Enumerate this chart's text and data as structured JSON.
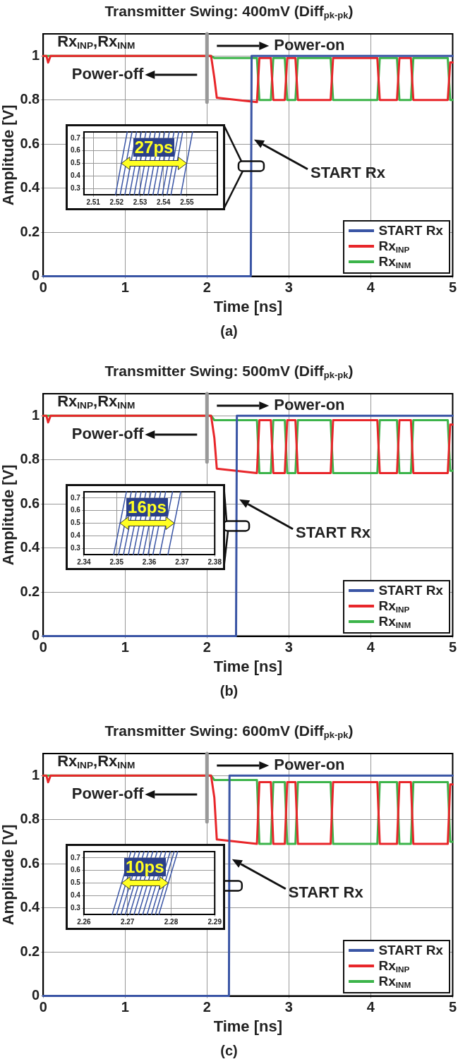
{
  "chart_data": [
    {
      "type": "line",
      "title": "Transmitter Swing: 400mV (Diff$_{pk-pk}$)",
      "xlabel": "Time [ns]",
      "ylabel": "Amplitude [V]",
      "xlim": [
        0,
        5
      ],
      "xticks": [
        0,
        1,
        2,
        3,
        4,
        5
      ],
      "ylim": [
        0,
        1.1
      ],
      "yticks": [
        0,
        0.2,
        0.4,
        0.6,
        0.8,
        1
      ],
      "grid": true,
      "legend": "bottom right",
      "marker": "none",
      "annotations": [
        "Rx$_{INP}$,Rx$_{INM}$",
        "Power-on",
        "Power-off",
        "START Rx",
        "(a)"
      ],
      "series": [
        {
          "color": "#999999",
          "x": [
            2,
            2
          ],
          "values": [
            0.79,
            1.1
          ]
        },
        {
          "name": "START Rx",
          "color": "#3a55a5",
          "x": [
            0,
            2.535,
            2.545,
            5
          ],
          "values": [
            0,
            0,
            1,
            1
          ]
        },
        {
          "name": "Rx$_{INP}$",
          "color": "#e8262a",
          "x": [
            0,
            0.04,
            0.06,
            0.09,
            2.05,
            2.09,
            2.12,
            2.61,
            2.64,
            2.78,
            2.81,
            2.95,
            2.98,
            3.08,
            3.11,
            3.51,
            3.54,
            4.08,
            4.11,
            4.32,
            4.35,
            4.49,
            4.52,
            4.94,
            4.97,
            5
          ],
          "values": [
            1,
            1,
            0.97,
            1,
            1,
            0.9,
            0.81,
            0.79,
            0.99,
            0.99,
            0.8,
            0.8,
            0.99,
            0.99,
            0.8,
            0.8,
            0.99,
            0.99,
            0.8,
            0.8,
            0.99,
            0.99,
            0.8,
            0.8,
            0.97,
            0.97
          ]
        },
        {
          "name": "Rx$_{INM}$",
          "color": "#3cb44a",
          "x": [
            0,
            2.05,
            2.09,
            2.61,
            2.64,
            2.78,
            2.81,
            2.95,
            2.98,
            3.08,
            3.11,
            3.51,
            3.54,
            4.08,
            4.11,
            4.32,
            4.35,
            4.49,
            4.52,
            4.94,
            4.97,
            5
          ],
          "values": [
            1,
            1,
            0.99,
            0.99,
            0.8,
            0.8,
            0.99,
            0.99,
            0.8,
            0.8,
            0.99,
            0.99,
            0.8,
            0.8,
            0.99,
            0.99,
            0.8,
            0.8,
            0.99,
            0.99,
            0.8,
            0.8
          ]
        }
      ]
    },
    {
      "type": "line",
      "xlim": [
        2.506,
        2.563
      ],
      "xticks": [
        2.51,
        2.52,
        2.53,
        2.54,
        2.55
      ],
      "ylim": [
        0.25,
        0.75
      ],
      "yticks": [
        0.3,
        0.4,
        0.5,
        0.6,
        0.7
      ],
      "grid": true,
      "marker": "none",
      "annotations": [
        "27ps"
      ],
      "series": [
        {
          "color": "#3a55a5",
          "x": [
            2.5195,
            2.5245
          ],
          "values": [
            0.25,
            0.75
          ]
        },
        {
          "color": "#3a55a5",
          "x": [
            2.5215,
            2.5265
          ],
          "values": [
            0.25,
            0.75
          ]
        },
        {
          "color": "#3a55a5",
          "x": [
            2.5235,
            2.5285
          ],
          "values": [
            0.25,
            0.75
          ]
        },
        {
          "color": "#3a55a5",
          "x": [
            2.5255,
            2.5305
          ],
          "values": [
            0.25,
            0.75
          ]
        },
        {
          "color": "#3a55a5",
          "x": [
            2.5275,
            2.5325
          ],
          "values": [
            0.25,
            0.75
          ]
        },
        {
          "color": "#3a55a5",
          "x": [
            2.5295,
            2.5345
          ],
          "values": [
            0.25,
            0.75
          ]
        },
        {
          "color": "#3a55a5",
          "x": [
            2.5315,
            2.5365
          ],
          "values": [
            0.25,
            0.75
          ]
        },
        {
          "color": "#3a55a5",
          "x": [
            2.5335,
            2.5385
          ],
          "values": [
            0.25,
            0.75
          ]
        },
        {
          "color": "#3a55a5",
          "x": [
            2.5355,
            2.5405
          ],
          "values": [
            0.25,
            0.75
          ]
        },
        {
          "color": "#3a55a5",
          "x": [
            2.5375,
            2.5425
          ],
          "values": [
            0.25,
            0.75
          ]
        },
        {
          "color": "#3a55a5",
          "x": [
            2.5395,
            2.5445
          ],
          "values": [
            0.25,
            0.75
          ]
        },
        {
          "color": "#3a55a5",
          "x": [
            2.5415,
            2.5465
          ],
          "values": [
            0.25,
            0.75
          ]
        },
        {
          "color": "#3a55a5",
          "x": [
            2.5432,
            2.5482
          ],
          "values": [
            0.25,
            0.75
          ]
        },
        {
          "color": "#3a55a5",
          "x": [
            2.5474,
            2.5524
          ],
          "values": [
            0.25,
            0.75
          ]
        }
      ]
    },
    {
      "type": "line",
      "title": "Transmitter Swing: 500mV (Diff$_{pk-pk}$)",
      "xlabel": "Time [ns]",
      "ylabel": "Amplitude [V]",
      "xlim": [
        0,
        5
      ],
      "xticks": [
        0,
        1,
        2,
        3,
        4,
        5
      ],
      "ylim": [
        0,
        1.1
      ],
      "yticks": [
        0,
        0.2,
        0.4,
        0.6,
        0.8,
        1
      ],
      "grid": true,
      "legend": "bottom right",
      "marker": "none",
      "annotations": [
        "Rx$_{INP}$,Rx$_{INM}$",
        "Power-on",
        "Power-off",
        "START Rx",
        "(b)"
      ],
      "series": [
        {
          "color": "#999999",
          "x": [
            2,
            2
          ],
          "values": [
            0.79,
            1.1
          ]
        },
        {
          "name": "START Rx",
          "color": "#3a55a5",
          "x": [
            0,
            2.355,
            2.365,
            5
          ],
          "values": [
            0,
            0,
            1,
            1
          ]
        },
        {
          "name": "Rx$_{INP}$",
          "color": "#e8262a",
          "x": [
            0,
            0.04,
            0.06,
            0.09,
            2.05,
            2.09,
            2.12,
            2.61,
            2.64,
            2.78,
            2.81,
            2.95,
            2.98,
            3.08,
            3.11,
            3.51,
            3.54,
            4.08,
            4.11,
            4.32,
            4.35,
            4.49,
            4.52,
            4.94,
            4.97,
            5
          ],
          "values": [
            1,
            1,
            0.97,
            1,
            1,
            0.9,
            0.76,
            0.74,
            0.98,
            0.98,
            0.74,
            0.74,
            0.98,
            0.98,
            0.74,
            0.74,
            0.98,
            0.98,
            0.74,
            0.74,
            0.98,
            0.98,
            0.74,
            0.74,
            0.96,
            0.96
          ]
        },
        {
          "name": "Rx$_{INM}$",
          "color": "#3cb44a",
          "x": [
            0,
            2.05,
            2.09,
            2.61,
            2.64,
            2.78,
            2.81,
            2.95,
            2.98,
            3.08,
            3.11,
            3.51,
            3.54,
            4.08,
            4.11,
            4.32,
            4.35,
            4.49,
            4.52,
            4.94,
            4.97,
            5
          ],
          "values": [
            1,
            1,
            0.98,
            0.98,
            0.74,
            0.74,
            0.98,
            0.98,
            0.74,
            0.74,
            0.98,
            0.98,
            0.74,
            0.74,
            0.98,
            0.98,
            0.74,
            0.74,
            0.98,
            0.98,
            0.75,
            0.75
          ]
        }
      ]
    },
    {
      "type": "line",
      "xlim": [
        2.34,
        2.38
      ],
      "xticks": [
        2.34,
        2.35,
        2.36,
        2.37,
        2.38
      ],
      "ylim": [
        0.25,
        0.75
      ],
      "yticks": [
        0.3,
        0.4,
        0.5,
        0.6,
        0.7
      ],
      "grid": true,
      "marker": "none",
      "annotations": [
        "16ps"
      ],
      "series": [
        {
          "color": "#3a55a5",
          "x": [
            2.3491,
            2.353
          ],
          "values": [
            0.25,
            0.75
          ]
        },
        {
          "color": "#3a55a5",
          "x": [
            2.3506,
            2.3545
          ],
          "values": [
            0.25,
            0.75
          ]
        },
        {
          "color": "#3a55a5",
          "x": [
            2.3521,
            2.356
          ],
          "values": [
            0.25,
            0.75
          ]
        },
        {
          "color": "#3a55a5",
          "x": [
            2.3536,
            2.3575
          ],
          "values": [
            0.25,
            0.75
          ]
        },
        {
          "color": "#3a55a5",
          "x": [
            2.3551,
            2.359
          ],
          "values": [
            0.25,
            0.75
          ]
        },
        {
          "color": "#3a55a5",
          "x": [
            2.3566,
            2.3605
          ],
          "values": [
            0.25,
            0.75
          ]
        },
        {
          "color": "#3a55a5",
          "x": [
            2.3581,
            2.362
          ],
          "values": [
            0.25,
            0.75
          ]
        },
        {
          "color": "#3a55a5",
          "x": [
            2.3596,
            2.3635
          ],
          "values": [
            0.25,
            0.75
          ]
        },
        {
          "color": "#3a55a5",
          "x": [
            2.3611,
            2.365
          ],
          "values": [
            0.25,
            0.75
          ]
        },
        {
          "color": "#3a55a5",
          "x": [
            2.3632,
            2.3671
          ],
          "values": [
            0.25,
            0.75
          ]
        },
        {
          "color": "#3a55a5",
          "x": [
            2.3657,
            2.3696
          ],
          "values": [
            0.25,
            0.75
          ]
        }
      ]
    },
    {
      "type": "line",
      "title": "Transmitter Swing: 600mV (Diff$_{pk-pk}$)",
      "xlabel": "Time [ns]",
      "ylabel": "Amplitude [V]",
      "xlim": [
        0,
        5
      ],
      "xticks": [
        0,
        1,
        2,
        3,
        4,
        5
      ],
      "ylim": [
        0,
        1.1
      ],
      "yticks": [
        0,
        0.2,
        0.4,
        0.6,
        0.8,
        1
      ],
      "grid": true,
      "legend": "bottom right",
      "marker": "none",
      "annotations": [
        "Rx$_{INP}$,Rx$_{INM}$",
        "Power-on",
        "Power-off",
        "START Rx",
        "(c)"
      ],
      "series": [
        {
          "color": "#999999",
          "x": [
            2,
            2
          ],
          "values": [
            0.79,
            1.1
          ]
        },
        {
          "name": "START Rx",
          "color": "#3a55a5",
          "x": [
            0,
            2.268,
            2.275,
            5
          ],
          "values": [
            0,
            0,
            1,
            1
          ]
        },
        {
          "name": "Rx$_{INP}$",
          "color": "#e8262a",
          "x": [
            0,
            0.04,
            0.06,
            0.09,
            2.05,
            2.09,
            2.12,
            2.61,
            2.64,
            2.78,
            2.81,
            2.95,
            2.98,
            3.08,
            3.11,
            3.51,
            3.54,
            4.08,
            4.11,
            4.32,
            4.35,
            4.49,
            4.52,
            4.94,
            4.97,
            5
          ],
          "values": [
            1,
            1,
            0.97,
            1,
            1,
            0.9,
            0.71,
            0.69,
            0.97,
            0.97,
            0.69,
            0.69,
            0.97,
            0.97,
            0.69,
            0.69,
            0.97,
            0.97,
            0.69,
            0.69,
            0.97,
            0.97,
            0.69,
            0.69,
            0.96,
            0.96
          ]
        },
        {
          "name": "Rx$_{INM}$",
          "color": "#3cb44a",
          "x": [
            0,
            2.05,
            2.09,
            2.61,
            2.64,
            2.78,
            2.81,
            2.95,
            2.98,
            3.08,
            3.11,
            3.51,
            3.54,
            4.08,
            4.11,
            4.32,
            4.35,
            4.49,
            4.52,
            4.94,
            4.97,
            5
          ],
          "values": [
            1,
            1,
            0.98,
            0.98,
            0.69,
            0.69,
            0.97,
            0.97,
            0.69,
            0.69,
            0.97,
            0.97,
            0.69,
            0.69,
            0.97,
            0.97,
            0.69,
            0.69,
            0.97,
            0.97,
            0.7,
            0.7
          ]
        }
      ]
    },
    {
      "type": "line",
      "xlim": [
        2.26,
        2.29
      ],
      "xticks": [
        2.26,
        2.27,
        2.28,
        2.29
      ],
      "ylim": [
        0.25,
        0.75
      ],
      "yticks": [
        0.3,
        0.4,
        0.5,
        0.6,
        0.7
      ],
      "grid": true,
      "marker": "none",
      "annotations": [
        "10ps"
      ],
      "series": [
        {
          "color": "#3a55a5",
          "x": [
            2.2665,
            2.2708
          ],
          "values": [
            0.25,
            0.75
          ]
        },
        {
          "color": "#3a55a5",
          "x": [
            2.2675,
            2.2718
          ],
          "values": [
            0.25,
            0.75
          ]
        },
        {
          "color": "#3a55a5",
          "x": [
            2.2685,
            2.2728
          ],
          "values": [
            0.25,
            0.75
          ]
        },
        {
          "color": "#3a55a5",
          "x": [
            2.2695,
            2.2738
          ],
          "values": [
            0.25,
            0.75
          ]
        },
        {
          "color": "#3a55a5",
          "x": [
            2.2705,
            2.2748
          ],
          "values": [
            0.25,
            0.75
          ]
        },
        {
          "color": "#3a55a5",
          "x": [
            2.2715,
            2.2758
          ],
          "values": [
            0.25,
            0.75
          ]
        },
        {
          "color": "#3a55a5",
          "x": [
            2.2725,
            2.2768
          ],
          "values": [
            0.25,
            0.75
          ]
        },
        {
          "color": "#3a55a5",
          "x": [
            2.2735,
            2.2778
          ],
          "values": [
            0.25,
            0.75
          ]
        },
        {
          "color": "#3a55a5",
          "x": [
            2.2745,
            2.2788
          ],
          "values": [
            0.25,
            0.75
          ]
        },
        {
          "color": "#3a55a5",
          "x": [
            2.2755,
            2.2798
          ],
          "values": [
            0.25,
            0.75
          ]
        },
        {
          "color": "#3a55a5",
          "x": [
            2.2764,
            2.2807
          ],
          "values": [
            0.25,
            0.75
          ]
        },
        {
          "color": "#3a55a5",
          "x": [
            2.2772,
            2.2815
          ],
          "values": [
            0.25,
            0.75
          ]
        }
      ]
    }
  ]
}
